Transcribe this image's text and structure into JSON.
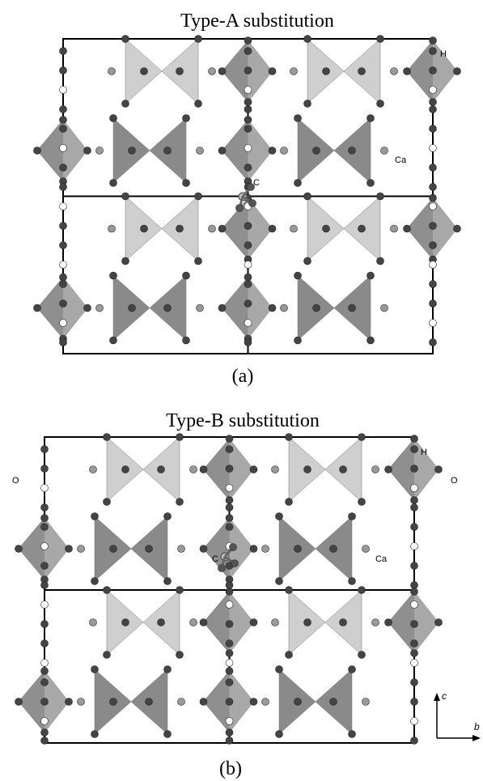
{
  "panel_a": {
    "title": "Type-A substitution",
    "labels": {
      "h": "H",
      "ca": "Ca",
      "c": "C"
    },
    "caption": "(a)"
  },
  "panel_b": {
    "title": "Type-B substitution",
    "labels": {
      "h": "H",
      "o_right": "O",
      "o_left": "O",
      "c": "C",
      "ca": "Ca"
    },
    "caption": "(b)"
  },
  "axes": {
    "c": "c",
    "b": "b"
  }
}
